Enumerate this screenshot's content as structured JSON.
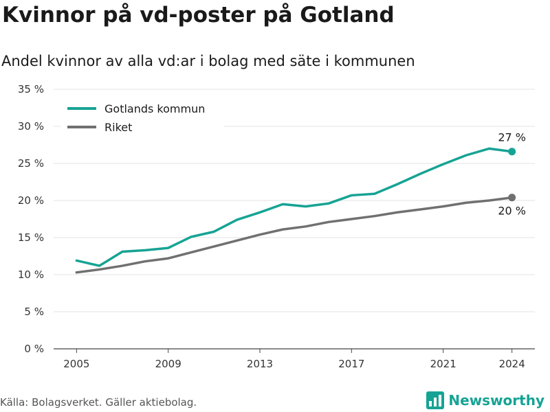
{
  "header": {
    "title": "Kvinnor på vd-poster på Gotland",
    "subtitle": "Andel kvinnor av alla vd:ar i bolag med säte i kommunen"
  },
  "footer": {
    "source": "Källa: Bolagsverket. Gäller aktiebolag.",
    "brand": "Newsworthy"
  },
  "colors": {
    "accent": "#16a394",
    "secondary": "#707070",
    "grid": "#e3e3e3"
  },
  "chart_data": {
    "type": "line",
    "title": "Kvinnor på vd-poster på Gotland",
    "subtitle": "Andel kvinnor av alla vd:ar i bolag med säte i kommunen",
    "xlabel": "",
    "ylabel": "",
    "x": [
      2005,
      2006,
      2007,
      2008,
      2009,
      2010,
      2011,
      2012,
      2013,
      2014,
      2015,
      2016,
      2017,
      2018,
      2019,
      2020,
      2021,
      2022,
      2023,
      2024
    ],
    "xticks": [
      2005,
      2009,
      2013,
      2017,
      2021,
      2024
    ],
    "xtick_labels": [
      "2005",
      "2009",
      "2013",
      "2017",
      "2021",
      "2024"
    ],
    "xlim": [
      2004,
      2025
    ],
    "ylim": [
      0,
      35
    ],
    "yticks": [
      0,
      5,
      10,
      15,
      20,
      25,
      30,
      35
    ],
    "ytick_labels": [
      "0 %",
      "5 %",
      "10 %",
      "15 %",
      "20 %",
      "25 %",
      "30 %",
      "35 %"
    ],
    "grid": true,
    "legend_position": "top-left",
    "series": [
      {
        "name": "Gotlands kommun",
        "color": "#16a394",
        "values": [
          11.9,
          11.2,
          13.1,
          13.3,
          13.6,
          15.1,
          15.8,
          17.4,
          18.4,
          19.5,
          19.2,
          19.6,
          20.7,
          20.9,
          22.2,
          23.6,
          24.9,
          26.1,
          27.0,
          26.6
        ],
        "end_label": "27 %"
      },
      {
        "name": "Riket",
        "color": "#707070",
        "values": [
          10.3,
          10.7,
          11.2,
          11.8,
          12.2,
          13.0,
          13.8,
          14.6,
          15.4,
          16.1,
          16.5,
          17.1,
          17.5,
          17.9,
          18.4,
          18.8,
          19.2,
          19.7,
          20.0,
          20.4
        ],
        "end_label": "20 %"
      }
    ]
  }
}
